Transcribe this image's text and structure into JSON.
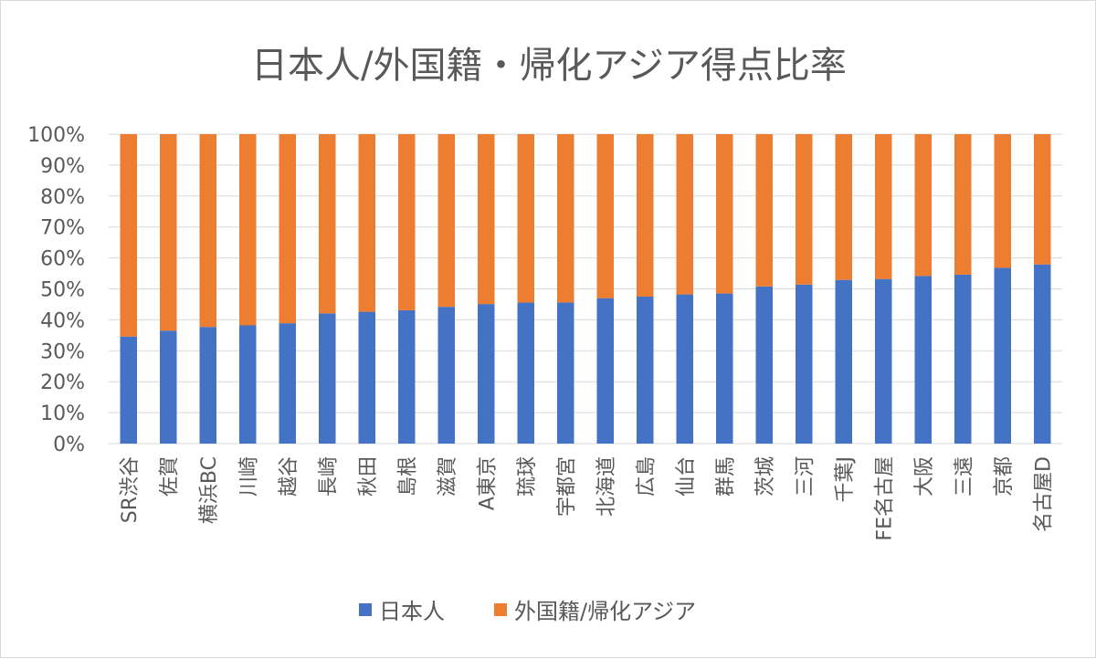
{
  "chart_data": {
    "type": "bar",
    "stacked": true,
    "normalized": true,
    "title": "日本人/外国籍・帰化アジア得点比率",
    "categories": [
      "SR渋谷",
      "佐賀",
      "横浜BC",
      "川崎",
      "越谷",
      "長崎",
      "秋田",
      "島根",
      "滋賀",
      "A東京",
      "琉球",
      "宇都宮",
      "北海道",
      "広島",
      "仙台",
      "群馬",
      "茨城",
      "三河",
      "千葉J",
      "FE名古屋",
      "大阪",
      "三遠",
      "京都",
      "名古屋D"
    ],
    "series": [
      {
        "name": "日本人",
        "color": "#4472C4",
        "values": [
          34.6,
          36.5,
          37.7,
          38.2,
          38.9,
          42.1,
          42.6,
          43.1,
          44.2,
          45.1,
          45.6,
          45.6,
          47.0,
          47.5,
          48.2,
          48.5,
          50.8,
          51.4,
          52.9,
          53.2,
          54.2,
          54.6,
          56.8,
          57.9
        ]
      },
      {
        "name": "外国籍/帰化アジア",
        "color": "#ED7D31",
        "values": [
          65.4,
          63.5,
          62.3,
          61.8,
          61.1,
          57.9,
          57.4,
          56.9,
          55.8,
          54.9,
          54.4,
          54.4,
          53.0,
          52.5,
          51.8,
          51.5,
          49.2,
          48.6,
          47.1,
          46.8,
          45.8,
          45.4,
          43.2,
          42.1
        ]
      }
    ],
    "yticks": [
      "0%",
      "10%",
      "20%",
      "30%",
      "40%",
      "50%",
      "60%",
      "70%",
      "80%",
      "90%",
      "100%"
    ],
    "ylim": [
      0,
      100
    ],
    "grid": true,
    "legend": "bottom"
  }
}
